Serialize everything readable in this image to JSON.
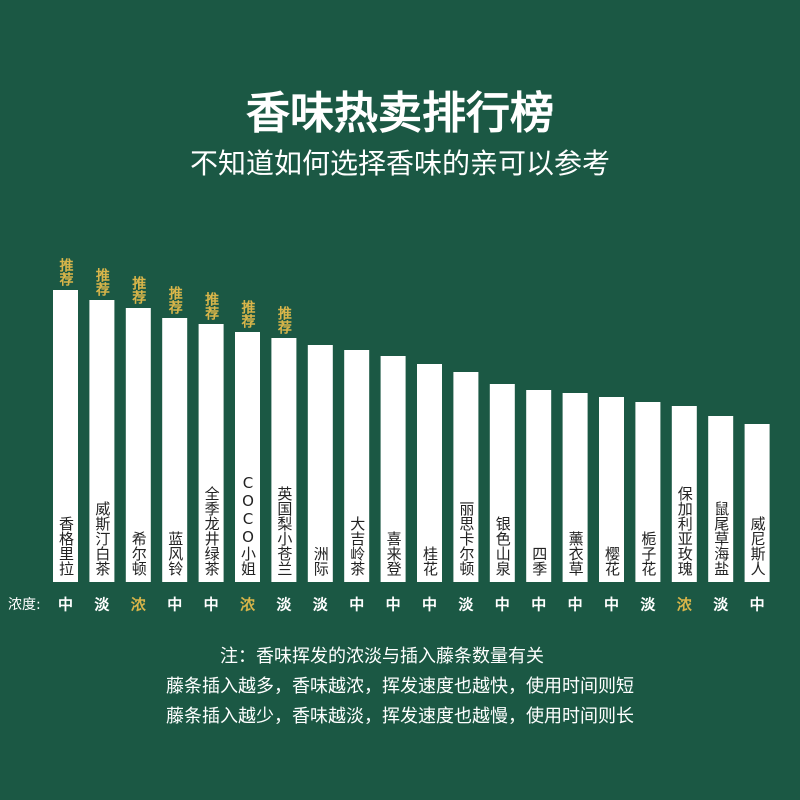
{
  "chart_data": {
    "type": "bar",
    "title": "香味热卖排行榜",
    "subtitle": "不知道如何选择香味的亲可以参考",
    "categories": [
      "香格里拉",
      "威斯汀白茶",
      "希尔顿",
      "蓝风铃",
      "全季龙井绿茶",
      "COCO小姐",
      "英国梨小苍兰",
      "洲际",
      "大吉岭茶",
      "喜来登",
      "桂花",
      "丽思卡尔顿",
      "银色山泉",
      "四季",
      "薰衣草",
      "樱花",
      "栀子花",
      "保加利亚玫瑰",
      "鼠尾草海盐",
      "威尼斯人"
    ],
    "values": [
      292,
      282,
      274,
      264,
      258,
      250,
      244,
      237,
      232,
      226,
      218,
      210,
      198,
      192,
      189,
      185,
      180,
      176,
      166,
      158
    ],
    "color": "#ffffff",
    "badges": [
      "推荐",
      "推荐",
      "推荐",
      "推荐",
      "推荐",
      "推荐",
      "推荐"
    ],
    "badge_color": "#d8b54a",
    "concentration_label": "浓度:",
    "concentration": [
      "中",
      "淡",
      "浓",
      "中",
      "中",
      "浓",
      "淡",
      "淡",
      "中",
      "中",
      "中",
      "淡",
      "中",
      "中",
      "中",
      "中",
      "淡",
      "浓",
      "淡",
      "中"
    ],
    "concentration_colors": [
      "#ffffff",
      "#ffffff",
      "#d8b54a",
      "#ffffff",
      "#ffffff",
      "#d8b54a",
      "#ffffff",
      "#ffffff",
      "#ffffff",
      "#ffffff",
      "#ffffff",
      "#ffffff",
      "#ffffff",
      "#ffffff",
      "#ffffff",
      "#ffffff",
      "#ffffff",
      "#d8b54a",
      "#ffffff",
      "#ffffff"
    ],
    "notes": [
      "注：香味挥发的浓淡与插入藤条数量有关",
      "藤条插入越多，香味越浓，挥发速度也越快，使用时间则短",
      "藤条插入越少，香味越淡，挥发速度也越慢，使用时间则长"
    ]
  }
}
